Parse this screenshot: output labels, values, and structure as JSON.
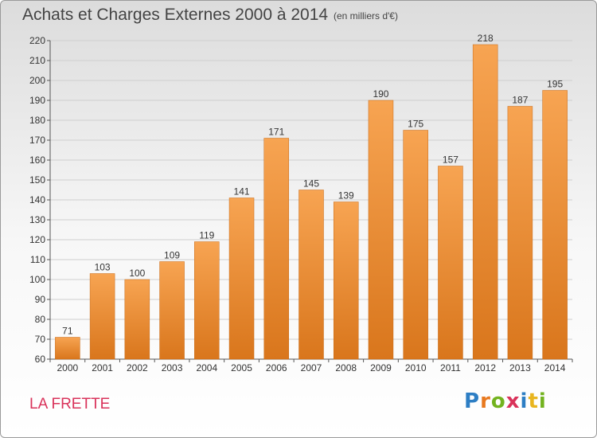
{
  "title": "Achats et Charges Externes 2000 à 2014",
  "subtitle": "(en milliers d'€)",
  "location": "LA FRETTE",
  "logo": "Proxiti",
  "colors": {
    "bar_top": "#f7a452",
    "bar_bottom": "#d9761c",
    "grid": "#cfcfcf",
    "location": "#d9325a"
  },
  "chart_data": {
    "type": "bar",
    "title": "Achats et Charges Externes 2000 à 2014",
    "subtitle": "(en milliers d'€)",
    "xlabel": "",
    "ylabel": "",
    "categories": [
      "2000",
      "2001",
      "2002",
      "2003",
      "2004",
      "2005",
      "2006",
      "2007",
      "2008",
      "2009",
      "2010",
      "2011",
      "2012",
      "2013",
      "2014"
    ],
    "values": [
      71,
      103,
      100,
      109,
      119,
      141,
      171,
      145,
      139,
      190,
      175,
      157,
      218,
      187,
      195
    ],
    "ylim": [
      60,
      220
    ],
    "yticks": [
      60,
      70,
      80,
      90,
      100,
      110,
      120,
      130,
      140,
      150,
      160,
      170,
      180,
      190,
      200,
      210,
      220
    ],
    "grid": true,
    "legend": "none"
  }
}
